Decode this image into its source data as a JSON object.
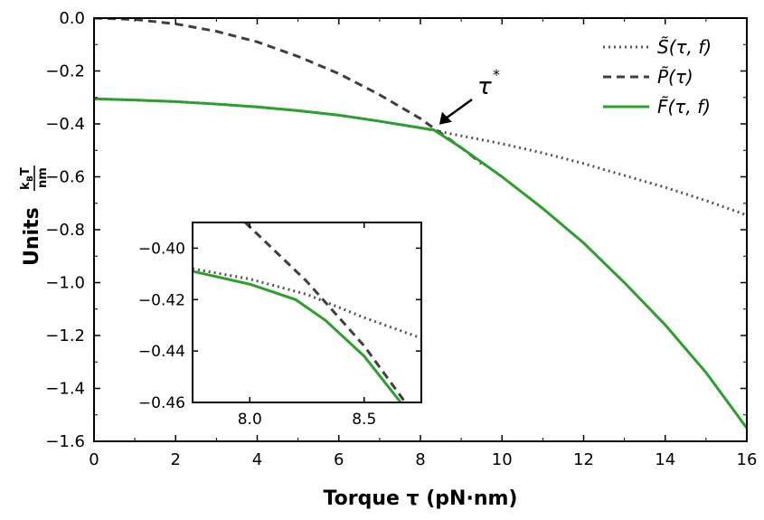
{
  "chart_data": {
    "type": "line",
    "xlabel": "Torque τ (pN·nm)",
    "ylabel": "Units",
    "ylabel_unit_top": "k",
    "ylabel_unit_sub": "B",
    "ylabel_unit_top2": "T",
    "ylabel_unit_bottom": "nm",
    "xlim": [
      0,
      16
    ],
    "ylim": [
      -1.6,
      0.0
    ],
    "xticks": [
      0,
      2,
      4,
      6,
      8,
      10,
      12,
      14,
      16
    ],
    "xtick_labels": [
      "0",
      "2",
      "4",
      "6",
      "8",
      "10",
      "12",
      "14",
      "16"
    ],
    "yticks": [
      0.0,
      -0.2,
      -0.4,
      -0.6,
      -0.8,
      -1.0,
      -1.2,
      -1.4,
      -1.6
    ],
    "ytick_labels": [
      "0.0",
      "−0.2",
      "−0.4",
      "−0.6",
      "−0.8",
      "−1.0",
      "−1.2",
      "−1.4",
      "−1.6"
    ],
    "legend_position": "top-right",
    "annotation": {
      "text": "τ",
      "superscript": "*",
      "x": 8.33,
      "y": -0.423
    },
    "series": [
      {
        "name": "S̃(τ, f)",
        "style": "dotted",
        "color": "#555555",
        "x": [
          0,
          1,
          2,
          3,
          4,
          5,
          6,
          7,
          8,
          9,
          10,
          11,
          12,
          13,
          14,
          15,
          16
        ],
        "y": [
          -0.305,
          -0.31,
          -0.316,
          -0.325,
          -0.336,
          -0.35,
          -0.367,
          -0.39,
          -0.415,
          -0.445,
          -0.475,
          -0.51,
          -0.55,
          -0.595,
          -0.64,
          -0.69,
          -0.745
        ]
      },
      {
        "name": "P̃(τ)",
        "style": "dashed",
        "color": "#3f3f3f",
        "x": [
          0,
          1,
          2,
          3,
          4,
          5,
          6,
          7,
          8,
          8.5,
          9,
          9.5
        ],
        "y": [
          0.0,
          -0.005,
          -0.022,
          -0.05,
          -0.09,
          -0.145,
          -0.21,
          -0.29,
          -0.38,
          -0.435,
          -0.49,
          -0.55
        ]
      },
      {
        "name": "F̃(τ, f)",
        "style": "solid",
        "color": "#2ca02c",
        "x": [
          0,
          1,
          2,
          3,
          4,
          5,
          6,
          7,
          8,
          8.33,
          9,
          10,
          11,
          12,
          13,
          14,
          15,
          16
        ],
        "y": [
          -0.305,
          -0.31,
          -0.316,
          -0.325,
          -0.336,
          -0.35,
          -0.367,
          -0.39,
          -0.415,
          -0.423,
          -0.49,
          -0.6,
          -0.72,
          -0.85,
          -1.0,
          -1.16,
          -1.34,
          -1.55
        ]
      }
    ],
    "inset": {
      "xlim": [
        7.75,
        8.75
      ],
      "ylim": [
        -0.46,
        -0.39
      ],
      "xticks": [
        8.0,
        8.5
      ],
      "xtick_labels": [
        "8.0",
        "8.5"
      ],
      "yticks": [
        -0.4,
        -0.42,
        -0.44,
        -0.46
      ],
      "ytick_labels": [
        "−0.40",
        "−0.42",
        "−0.44",
        "−0.46"
      ],
      "series": [
        {
          "style": "dotted",
          "color": "#555555",
          "x": [
            7.75,
            8.0,
            8.25,
            8.5,
            8.75
          ],
          "y": [
            -0.408,
            -0.412,
            -0.418,
            -0.427,
            -0.435
          ]
        },
        {
          "style": "dashed",
          "color": "#3f3f3f",
          "x": [
            7.98,
            8.25,
            8.5,
            8.68
          ],
          "y": [
            -0.39,
            -0.413,
            -0.438,
            -0.46
          ]
        },
        {
          "style": "solid",
          "color": "#2ca02c",
          "x": [
            7.75,
            8.0,
            8.2,
            8.33,
            8.5,
            8.66
          ],
          "y": [
            -0.409,
            -0.414,
            -0.42,
            -0.428,
            -0.442,
            -0.46
          ]
        }
      ]
    }
  }
}
